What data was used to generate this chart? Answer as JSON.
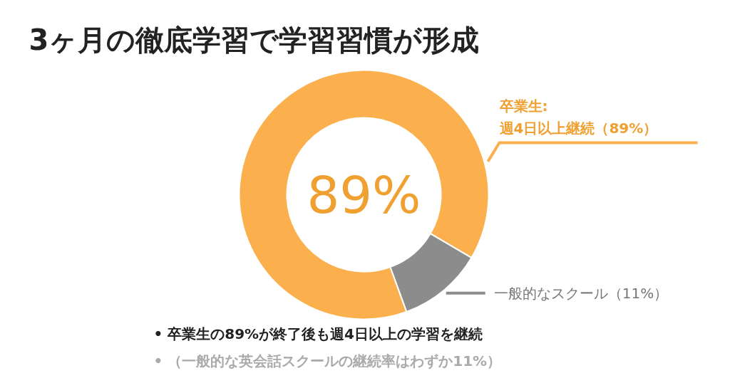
{
  "chart_data": {
    "type": "donut",
    "title": "3ヶ月の徹底学習で学習習慣が形成",
    "categories": [
      "卒業生:\n週4日以上継続（89%）",
      "一般的なスクール（11%）"
    ],
    "values": [
      89,
      11
    ],
    "colors": [
      "#fbb04d",
      "#8c8c8c"
    ],
    "annotations": [
      "89%",
      "• 卒業生の89%が終了後も週4日以上の学習を継続",
      "• （一般的な英会話スクールの継続率はわずか11%）"
    ]
  }
}
